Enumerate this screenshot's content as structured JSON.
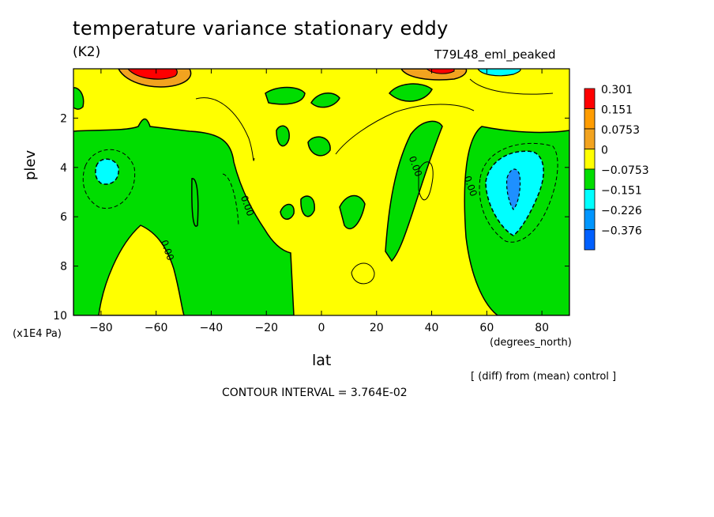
{
  "chart_data": {
    "type": "heatmap",
    "title": "temperature variance stationary eddy",
    "units": "(K2)",
    "experiment": "T79L48_eml_peaked",
    "xlabel": "lat",
    "x_units": "(degrees_north)",
    "ylabel": "plev",
    "y_units": "(x1E4 Pa)",
    "xlim": [
      -90,
      90
    ],
    "ylim": [
      0,
      10
    ],
    "y_inverted": true,
    "x_ticks": [
      -80,
      -60,
      -40,
      -20,
      0,
      20,
      40,
      60,
      80
    ],
    "x_tick_labels": [
      "−80",
      "−60",
      "−40",
      "−20",
      "0",
      "20",
      "40",
      "60",
      "80"
    ],
    "y_ticks": [
      2,
      4,
      6,
      8,
      10
    ],
    "y_tick_labels": [
      "2",
      "4",
      "6",
      "8",
      "10"
    ],
    "contour_labels": [
      {
        "text": "0.00",
        "lat": -28,
        "plev": 5.6
      },
      {
        "text": "0.00",
        "lat": -57,
        "plev": 7.4
      },
      {
        "text": "0.00",
        "lat": 33,
        "plev": 4.0
      },
      {
        "text": "0.00",
        "lat": 53,
        "plev": 4.8
      }
    ],
    "legend": {
      "placement": "right",
      "levels": [
        "0.301",
        "0.151",
        "0.0753",
        "0",
        "−0.0753",
        "−0.151",
        "−0.226",
        "−0.376"
      ],
      "colors": [
        "#ff0000",
        "#ff9c00",
        "#f2a31f",
        "#ffff00",
        "#00dd00",
        "#00ffff",
        "#0096ff",
        "#0060ff"
      ]
    },
    "note": "[ (diff) from (mean) control ]",
    "contour_interval": "CONTOUR INTERVAL = 3.764E-02"
  },
  "colors": {
    "positive_fill": "#ffff00",
    "negative_fill": "#00dd00",
    "strong_negative": "#00ffff",
    "peak_negative": "#1e90ff",
    "strong_positive": "#ff9c00",
    "peak_positive": "#ff0000"
  }
}
